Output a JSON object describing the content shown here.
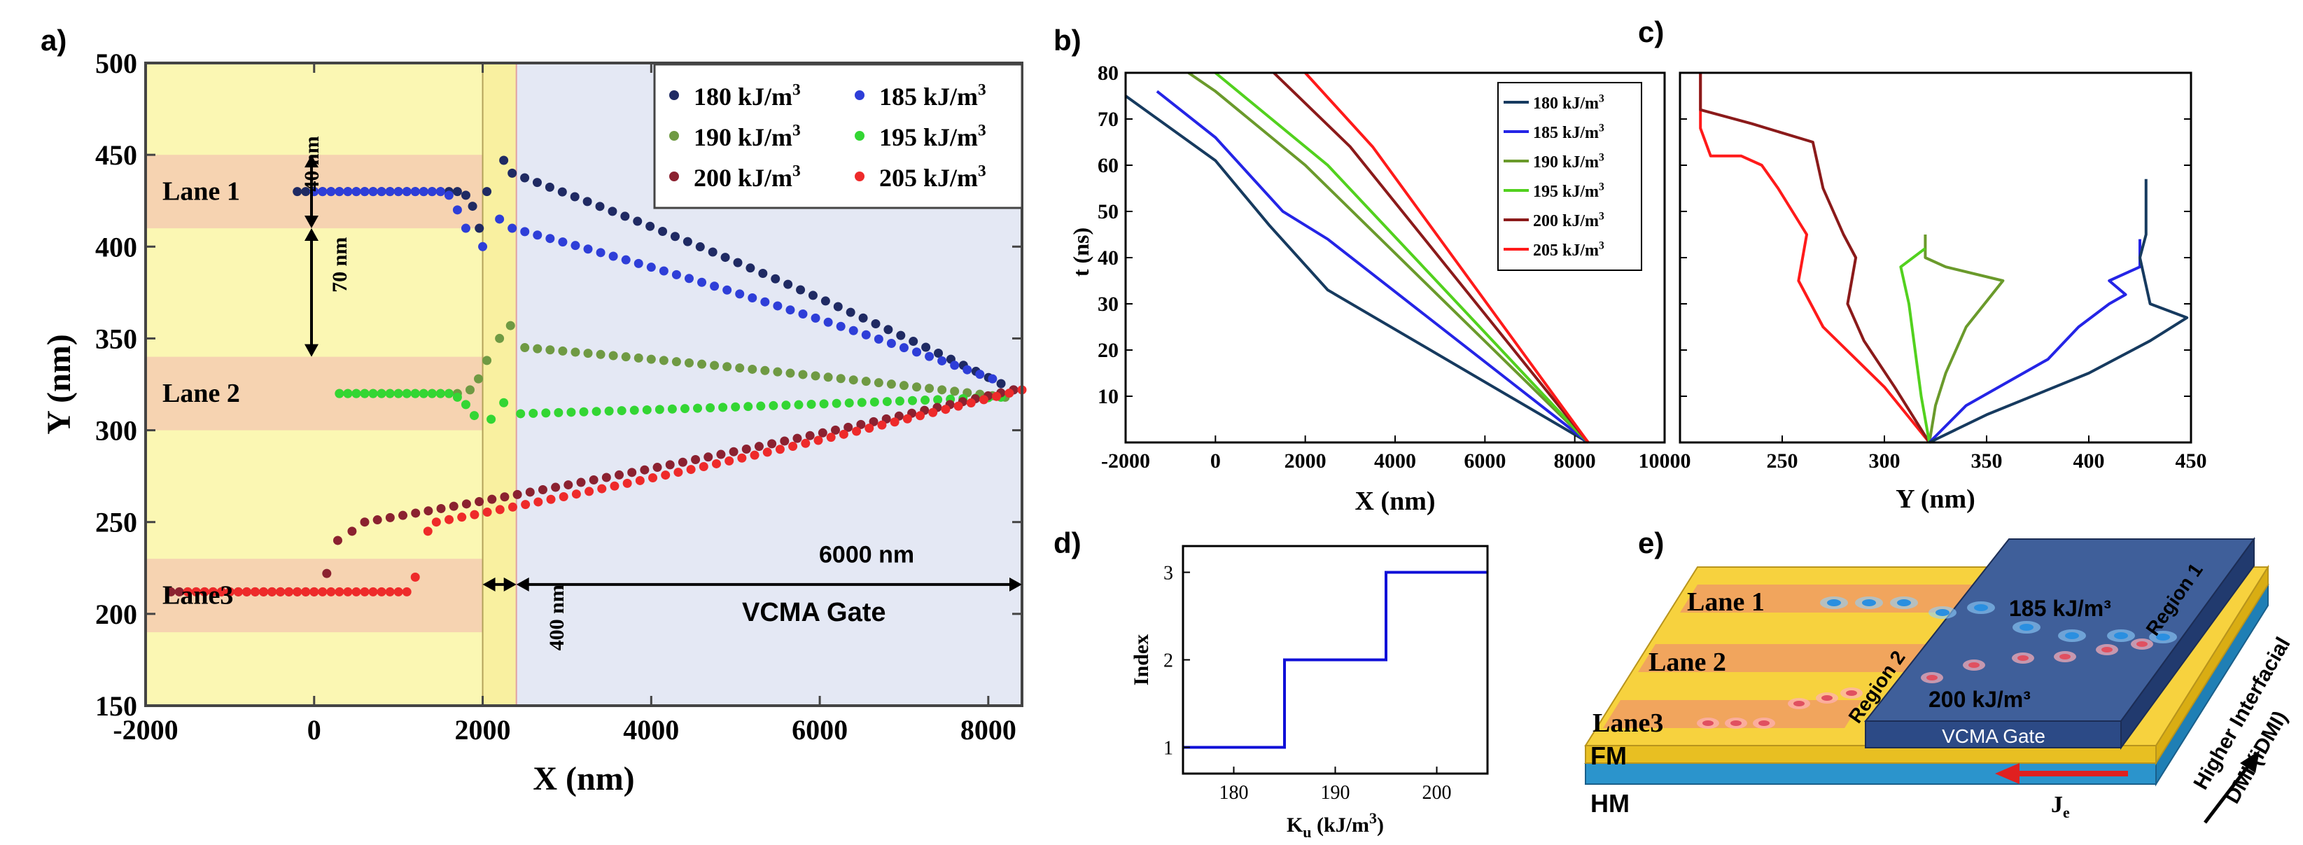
{
  "panel_labels": {
    "a": "a)",
    "b": "b)",
    "c": "c)",
    "d": "d)",
    "e": "e)"
  },
  "chart_data": [
    {
      "id": "a",
      "type": "scatter",
      "xlabel": "X (nm)",
      "ylabel": "Y (nm)",
      "xlim": [
        -2000,
        8400
      ],
      "ylim": [
        150,
        500
      ],
      "xticks": [
        -2000,
        0,
        2000,
        4000,
        6000,
        8000
      ],
      "yticks": [
        150,
        200,
        250,
        300,
        350,
        400,
        450,
        500
      ],
      "legend_placement": "top-right",
      "regions": {
        "left_region_xlim": [
          -2000,
          2000
        ],
        "gap_xlim": [
          2000,
          2400
        ],
        "gate_xlim": [
          2400,
          8400
        ],
        "lane_bands": [
          [
            410,
            450
          ],
          [
            300,
            340
          ],
          [
            190,
            230
          ]
        ]
      },
      "annotations": {
        "lane1": "Lane 1",
        "lane2": "Lane 2",
        "lane3": "Lane3",
        "width_40": "40 nm",
        "spacing_70": "70 nm",
        "gap_400": "400 nm",
        "gate_length": "6000 nm",
        "gate": "VCMA Gate"
      },
      "series": [
        {
          "name": "180 kJ/m³",
          "color": "#1f2a63",
          "x0": -200,
          "y0": 430,
          "flat_end": 1700,
          "dip": [
            [
              1800,
              428
            ],
            [
              1880,
              422
            ],
            [
              1960,
              410
            ],
            [
              2050,
              430
            ],
            [
              2250,
              447
            ]
          ],
          "x_jump": 2350,
          "y_jump": 440,
          "x_end": 8300,
          "y_end": 322
        },
        {
          "name": "185 kJ/m³",
          "color": "#2e3ed8",
          "x0": 0,
          "y0": 430,
          "flat_end": 1500,
          "dip": [
            [
              1600,
              428
            ],
            [
              1700,
              420
            ],
            [
              1800,
              410
            ],
            [
              2000,
              400
            ],
            [
              2200,
              415
            ]
          ],
          "x_jump": 2350,
          "y_jump": 410,
          "x_end": 8050,
          "y_end": 328
        },
        {
          "name": "190 kJ/m³",
          "color": "#6f9a43",
          "x0": 300,
          "y0": 320,
          "flat_end": 1750,
          "dip": [
            [
              1850,
              322
            ],
            [
              1950,
              328
            ],
            [
              2050,
              338
            ],
            [
              2200,
              350
            ],
            [
              2330,
              357
            ]
          ],
          "x_jump": 2500,
          "y_jump": 345,
          "x_end": 8200,
          "y_end": 318
        },
        {
          "name": "195 kJ/m³",
          "color": "#33d633",
          "x0": 300,
          "y0": 320,
          "flat_end": 1600,
          "dip": [
            [
              1700,
              318
            ],
            [
              1800,
              314
            ],
            [
              1900,
              308
            ],
            [
              2100,
              306
            ],
            [
              2250,
              315
            ]
          ],
          "x_jump": 2450,
          "y_jump": 309,
          "x_end": 8150,
          "y_end": 318
        },
        {
          "name": "200 kJ/m³",
          "color": "#8b2130",
          "x0": -1700,
          "y0": 212,
          "flat_end": 50,
          "dip": [
            [
              150,
              222
            ],
            [
              280,
              240
            ],
            [
              450,
              245
            ]
          ],
          "x_jump": 600,
          "y_jump": 250,
          "x_end": 8300,
          "y_end": 322
        },
        {
          "name": "205 kJ/m³",
          "color": "#ee2a2a",
          "x0": -1500,
          "y0": 212,
          "flat_end": 1100,
          "dip": [
            [
              1200,
              220
            ],
            [
              1350,
              245
            ]
          ],
          "x_jump": 1450,
          "y_jump": 250,
          "x_end": 8400,
          "y_end": 322
        }
      ]
    },
    {
      "id": "b",
      "type": "line",
      "xlabel": "X (nm)",
      "ylabel": "t (ns)",
      "xlim": [
        -2000,
        10000
      ],
      "ylim": [
        0,
        80
      ],
      "xticks": [
        -2000,
        0,
        2000,
        4000,
        6000,
        8000,
        10000
      ],
      "xtick_labels": [
        "-2000",
        "0",
        "2000",
        "4000",
        "6000",
        "8000",
        "10000"
      ],
      "yticks": [
        10,
        20,
        30,
        40,
        50,
        60,
        70,
        80
      ],
      "legend_placement": "top-right",
      "series": [
        {
          "name": "180 kJ/m³",
          "color": "#163a5f",
          "x": [
            8300,
            2500,
            1200,
            0,
            -2000
          ],
          "y": [
            0,
            33,
            47,
            61,
            75
          ]
        },
        {
          "name": "185 kJ/m³",
          "color": "#2424e6",
          "x": [
            8300,
            2500,
            1500,
            0,
            -1300
          ],
          "y": [
            0,
            44,
            50,
            66,
            76
          ]
        },
        {
          "name": "190 kJ/m³",
          "color": "#6a9a2b",
          "x": [
            8300,
            2000,
            0,
            -600
          ],
          "y": [
            0,
            60,
            76,
            80
          ]
        },
        {
          "name": "195 kJ/m³",
          "color": "#52d11e",
          "x": [
            8300,
            2500,
            0
          ],
          "y": [
            0,
            60,
            80
          ]
        },
        {
          "name": "200 kJ/m³",
          "color": "#8b1a1a",
          "x": [
            8300,
            3000,
            1300
          ],
          "y": [
            0,
            64,
            80
          ]
        },
        {
          "name": "205 kJ/m³",
          "color": "#ff1a1a",
          "x": [
            8300,
            3500,
            2000
          ],
          "y": [
            0,
            64,
            80
          ]
        }
      ]
    },
    {
      "id": "c",
      "type": "line",
      "xlabel": "Y (nm)",
      "ylabel": "",
      "xlim": [
        200,
        450
      ],
      "ylim": [
        0,
        80
      ],
      "xticks": [
        250,
        300,
        350,
        400,
        450
      ],
      "yticks": [
        10,
        20,
        30,
        40,
        50,
        60,
        70,
        80
      ],
      "series": [
        {
          "color": "#ff1a1a",
          "x": [
            322,
            300,
            270,
            258,
            262,
            255,
            248,
            240,
            230,
            215,
            210,
            210
          ],
          "y": [
            0,
            12,
            25,
            35,
            45,
            50,
            55,
            60,
            62,
            62,
            68,
            80
          ]
        },
        {
          "color": "#8b1a1a",
          "x": [
            322,
            305,
            290,
            282,
            286,
            280,
            275,
            270,
            265,
            235,
            210,
            210
          ],
          "y": [
            0,
            12,
            22,
            30,
            40,
            45,
            50,
            55,
            65,
            69,
            72,
            80
          ]
        },
        {
          "color": "#6a9a2b",
          "x": [
            322,
            325,
            330,
            340,
            358,
            330,
            320,
            320
          ],
          "y": [
            0,
            8,
            15,
            25,
            35,
            38,
            40,
            45
          ]
        },
        {
          "color": "#52d11e",
          "x": [
            322,
            318,
            315,
            312,
            308,
            320
          ],
          "y": [
            0,
            10,
            20,
            30,
            38,
            42
          ]
        },
        {
          "color": "#2424e6",
          "x": [
            322,
            340,
            380,
            395,
            410,
            418,
            410,
            425,
            425
          ],
          "y": [
            0,
            8,
            18,
            25,
            30,
            32,
            35,
            38,
            44
          ]
        },
        {
          "color": "#163a5f",
          "x": [
            322,
            350,
            400,
            430,
            448,
            430,
            425,
            428,
            428
          ],
          "y": [
            0,
            6,
            15,
            22,
            27,
            30,
            40,
            45,
            57
          ]
        }
      ]
    },
    {
      "id": "d",
      "type": "line",
      "xlabel": "K",
      "xlabel_sub": "u",
      "xlabel_units": " (kJ/m",
      "xlabel_sup": "3",
      "xlabel_close": ")",
      "ylabel": "Index",
      "xlim": [
        175,
        205
      ],
      "ylim": [
        0.7,
        3.3
      ],
      "xticks": [
        180,
        190,
        200
      ],
      "yticks": [
        1,
        2,
        3
      ],
      "series": [
        {
          "color": "#1010d8",
          "x": [
            175,
            185,
            185,
            195,
            195,
            205
          ],
          "y": [
            1,
            1,
            2,
            2,
            3,
            3
          ]
        }
      ]
    }
  ],
  "diagram_e": {
    "lane1": "Lane 1",
    "lane2": "Lane 2",
    "lane3": "Lane3",
    "region1": "Region 1",
    "region2": "Region 2",
    "k185": "185 kJ/m³",
    "k200": "200 kJ/m³",
    "gate": "VCMA Gate",
    "fm": "FM",
    "hm": "HM",
    "je": "J",
    "je_sub": "e",
    "dmi_line1": "Higher Interfacial",
    "dmi_line2": "DMI (iDMI)",
    "colors": {
      "fm": "#f7d23e",
      "hm": "#33a6e0",
      "gate": "#3f5f9a",
      "lane": "#f0a060",
      "blue_skyrmion": "#2a8fe0",
      "red_skyrmion": "#e05060"
    }
  }
}
